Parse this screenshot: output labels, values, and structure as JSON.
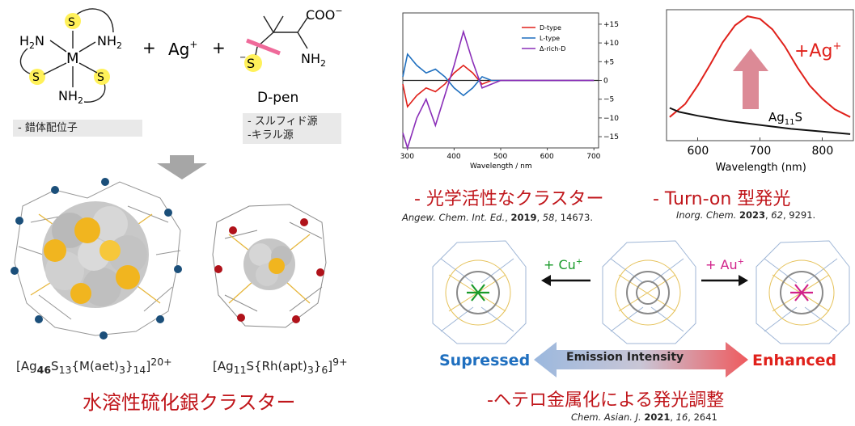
{
  "scheme": {
    "s": "S",
    "h2n": "H",
    "two": "2",
    "n": "N",
    "nh": "NH",
    "m": "M",
    "plus": "+",
    "ag": "Ag",
    "ag_sup": "+",
    "coo": "COO",
    "minus": "−",
    "dpen": "D-pen",
    "ligand_label": "- 錯体配位子",
    "dpen_label_1": "- スルフィド源",
    "dpen_label_2": "-キラル源"
  },
  "clusters": {
    "f1_a": "[Ag",
    "f1_b": "46",
    "f1_c": "S",
    "f1_d": "13",
    "f1_e": "{M(aet)",
    "f1_f": "3",
    "f1_g": "}",
    "f1_h": "14",
    "f1_i": "]",
    "f1_j": "20+",
    "f2_a": "[Ag",
    "f2_b": "11",
    "f2_c": "S{Rh(apt)",
    "f2_d": "3",
    "f2_e": "}",
    "f2_f": "6",
    "f2_g": "]",
    "f2_h": "9+",
    "title": "水溶性硫化銀クラスター"
  },
  "cd_chart": {
    "chart_data": {
      "type": "line",
      "xlabel": "Wavelength / nm",
      "xticks": [
        "300",
        "400",
        "500",
        "600",
        "700"
      ],
      "yticks": [
        "+15",
        "+10",
        "+5",
        "0",
        "−5",
        "−10",
        "−15"
      ],
      "xlim": [
        290,
        710
      ],
      "ylim": [
        -18,
        18
      ],
      "legend": [
        "D-type",
        "L-type",
        "Δ-rich-D"
      ],
      "series": [
        {
          "name": "D-type",
          "color": "#e0211b",
          "x": [
            290,
            300,
            320,
            340,
            360,
            380,
            400,
            420,
            440,
            460,
            480,
            500,
            550,
            600,
            700
          ],
          "y": [
            -1,
            -7,
            -4,
            -2,
            -3,
            -1,
            2,
            4,
            2,
            -1,
            0,
            0,
            0,
            0,
            0
          ]
        },
        {
          "name": "L-type",
          "color": "#1f6fbf",
          "x": [
            290,
            300,
            320,
            340,
            360,
            380,
            400,
            420,
            440,
            460,
            480,
            500,
            550,
            600,
            700
          ],
          "y": [
            1,
            7,
            4,
            2,
            3,
            1,
            -2,
            -4,
            -2,
            1,
            0,
            0,
            0,
            0,
            0
          ]
        },
        {
          "name": "Δ-rich-D",
          "color": "#8a2eb8",
          "x": [
            290,
            300,
            320,
            340,
            360,
            380,
            400,
            420,
            440,
            460,
            480,
            500,
            550,
            600,
            700
          ],
          "y": [
            -14,
            -18,
            -10,
            -5,
            -12,
            -4,
            4,
            13,
            5,
            -2,
            -1,
            0,
            0,
            0,
            0
          ]
        }
      ]
    },
    "title": "- 光学活性なクラスター",
    "cite_a": "Angew. Chem. Int. Ed.",
    "cite_b": ", ",
    "cite_c": "2019",
    "cite_d": ", ",
    "cite_e": "58",
    "cite_f": ", 14673."
  },
  "em_chart": {
    "chart_data": {
      "type": "line",
      "xlabel": "Wavelength (nm)",
      "xticks": [
        "600",
        "700",
        "800"
      ],
      "xlim": [
        550,
        850
      ],
      "series": [
        {
          "name": "+Ag+",
          "color": "#e0211b",
          "x": [
            555,
            580,
            600,
            620,
            640,
            660,
            680,
            700,
            720,
            740,
            760,
            780,
            800,
            820,
            845
          ],
          "y": [
            0.18,
            0.28,
            0.42,
            0.58,
            0.75,
            0.88,
            0.95,
            0.93,
            0.85,
            0.72,
            0.56,
            0.42,
            0.32,
            0.24,
            0.18
          ]
        },
        {
          "name": "Ag11S",
          "color": "#111111",
          "x": [
            555,
            570,
            600,
            650,
            700,
            750,
            800,
            845
          ],
          "y": [
            0.25,
            0.22,
            0.19,
            0.15,
            0.12,
            0.09,
            0.07,
            0.05
          ]
        }
      ]
    },
    "label_ag": "+Ag",
    "label_ag_sup": "+",
    "label_s_a": "Ag",
    "label_s_b": "11",
    "label_s_c": "S",
    "title": "- Turn-on 型発光",
    "cite_a": "Inorg. Chem.",
    "cite_b": " ",
    "cite_c": "2023",
    "cite_d": ", ",
    "cite_e": "62",
    "cite_f": ", 9291."
  },
  "hetero": {
    "cu_a": "+ Cu",
    "cu_b": "+",
    "au_a": "+ Au",
    "au_b": "+",
    "suppressed": "Supressed",
    "intensity": "Emission Intensity",
    "enhanced": "Enhanced",
    "title": "-ヘテロ金属化による発光調整",
    "cite_a": "Chem. Asian. J.",
    "cite_b": " ",
    "cite_c": "2021",
    "cite_d": ", ",
    "cite_e": "16",
    "cite_f": ", 2641",
    "colors": {
      "blue": "#1f6fbf",
      "red": "#e0211b",
      "green": "#1a9a2a",
      "pink": "#d1228a"
    }
  }
}
